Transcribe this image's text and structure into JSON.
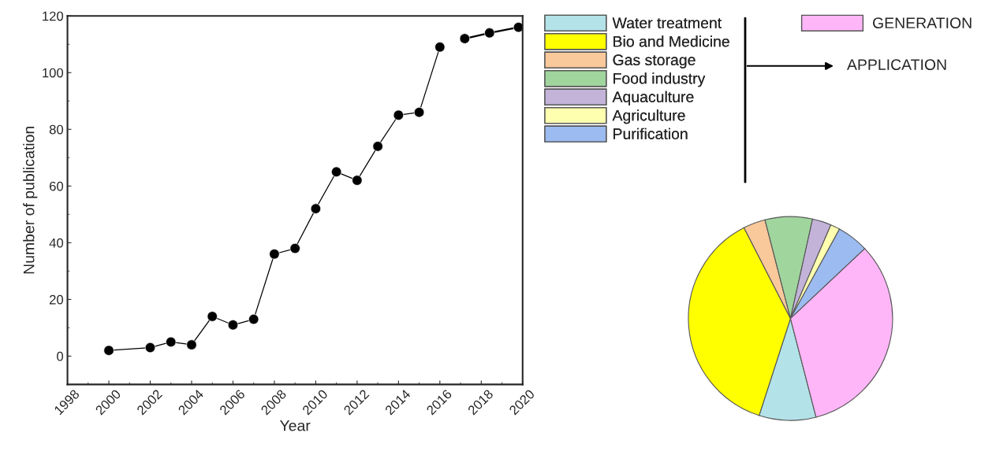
{
  "chart_data": [
    {
      "type": "line",
      "xlabel": "Year",
      "ylabel": "Number of publication",
      "xlim": [
        1998,
        2020
      ],
      "xticks": [
        1998,
        2000,
        2002,
        2004,
        2006,
        2008,
        2010,
        2012,
        2014,
        2016,
        2018,
        2020
      ],
      "ylim": [
        -10,
        120
      ],
      "yticks": [
        0,
        20,
        40,
        60,
        80,
        100,
        120
      ],
      "marker": "circle",
      "line_style": "solid",
      "grid": false,
      "legend": false,
      "series": [
        {
          "color": "#000000",
          "x": [
            2000,
            2002,
            2003,
            2004,
            2005,
            2006,
            2007,
            2008,
            2009,
            2010,
            2011,
            2012,
            2013,
            2014,
            2015,
            2016
          ],
          "values": [
            2,
            3,
            5,
            4,
            14,
            11,
            13,
            36,
            38,
            52,
            65,
            62,
            74,
            85,
            86,
            109
          ]
        },
        {
          "color": "#000000",
          "x": [
            2017.2,
            2018.4,
            2019.8
          ],
          "values": [
            112,
            114,
            116
          ]
        }
      ]
    },
    {
      "type": "pie",
      "categories": [
        "Water treatment",
        "Bio and Medicine",
        "Gas storage",
        "Food industry",
        "Aquaculture",
        "Agriculture",
        "Purification",
        "GENERATION"
      ],
      "values": [
        9,
        37.5,
        3.5,
        7.5,
        3,
        1.5,
        5,
        33
      ],
      "colors": [
        "#b3e2e8",
        "#ffff00",
        "#f9c89b",
        "#a1d59e",
        "#c3b3d9",
        "#ffffb0",
        "#9cbbf0",
        "#ffb6f8"
      ],
      "legend": "top left",
      "annotations": [
        "APPLICATION"
      ]
    }
  ]
}
